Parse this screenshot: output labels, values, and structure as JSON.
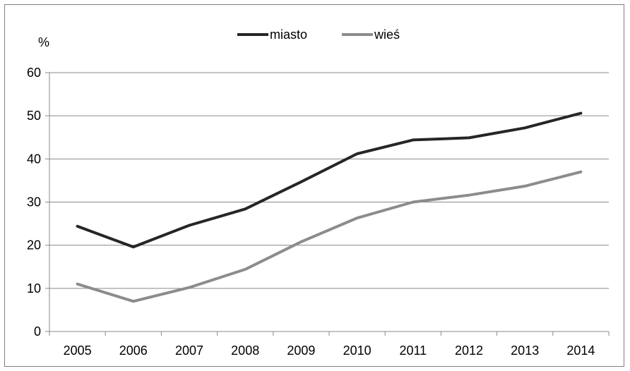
{
  "chart_data": {
    "type": "line",
    "title": "",
    "xlabel": "",
    "ylabel": "%",
    "x": [
      "2005",
      "2006",
      "2007",
      "2008",
      "2009",
      "2010",
      "2011",
      "2012",
      "2013",
      "2014"
    ],
    "ylim": [
      0,
      60
    ],
    "yticks": [
      "0",
      "10",
      "20",
      "30",
      "40",
      "50",
      "60"
    ],
    "grid": true,
    "legend_position": "top",
    "series": [
      {
        "name": "miasto",
        "color": "#262626",
        "values": [
          24.4,
          19.6,
          24.6,
          28.4,
          34.7,
          41.2,
          44.4,
          44.9,
          47.2,
          50.6
        ]
      },
      {
        "name": "wieś",
        "color": "#8c8c8c",
        "values": [
          11.0,
          7.0,
          10.2,
          14.4,
          20.8,
          26.3,
          30.0,
          31.6,
          33.7,
          37.0
        ]
      }
    ]
  }
}
